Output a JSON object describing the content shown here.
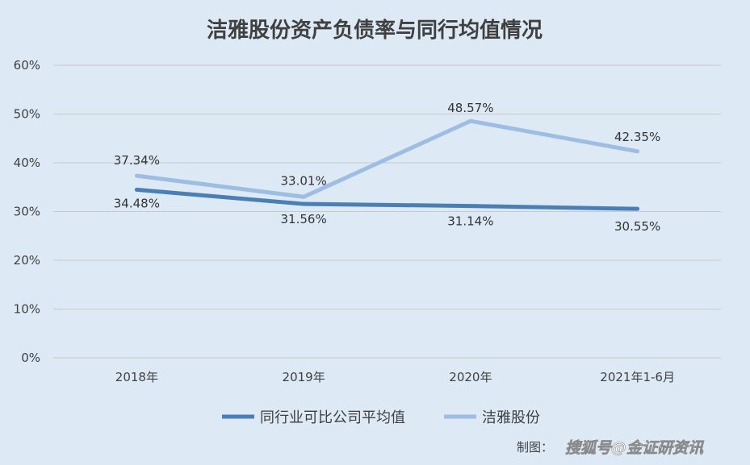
{
  "chart_data": {
    "type": "line",
    "title": "洁雅股份资产负债率与同行均值情况",
    "categories": [
      "2018年",
      "2019年",
      "2020年",
      "2021年1-6月"
    ],
    "y_ticks": [
      "0%",
      "10%",
      "20%",
      "30%",
      "40%",
      "50%",
      "60%"
    ],
    "ylim": [
      0,
      60
    ],
    "grid": true,
    "legend_position": "bottom",
    "series": [
      {
        "name": "同行业可比公司平均值",
        "values": [
          34.48,
          31.56,
          31.14,
          30.55
        ],
        "labels": [
          "34.48%",
          "31.56%",
          "31.14%",
          "30.55%"
        ],
        "color": "#4a7fb5"
      },
      {
        "name": "洁雅股份",
        "values": [
          37.34,
          33.01,
          48.57,
          42.35
        ],
        "labels": [
          "37.34%",
          "33.01%",
          "48.57%",
          "42.35%"
        ],
        "color": "#9dbde2"
      }
    ]
  },
  "credit": {
    "label": "制图：",
    "watermark": "搜狐号@金证研资讯"
  }
}
